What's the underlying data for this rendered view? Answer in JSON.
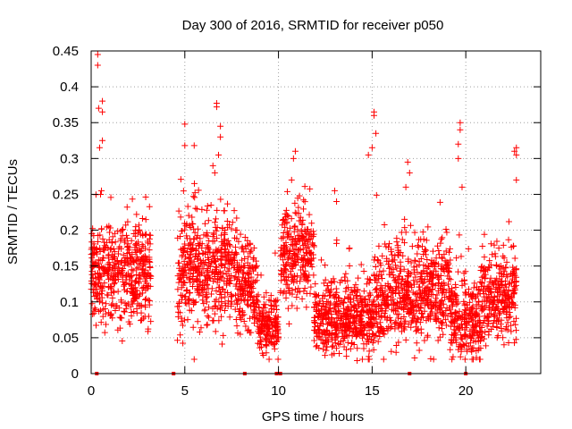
{
  "chart_data": {
    "type": "scatter",
    "title": "Day 300 of 2016, SRMTID for receiver p050",
    "xlabel": "GPS time / hours",
    "ylabel": "SRMTID / TECUs",
    "xlim": [
      0,
      24
    ],
    "ylim": [
      0,
      0.45
    ],
    "x_ticks": [
      0,
      5,
      10,
      15,
      20
    ],
    "y_ticks": [
      0,
      0.05,
      0.1,
      0.15,
      0.2,
      0.25,
      0.3,
      0.35,
      0.4,
      0.45
    ],
    "grid": true,
    "marker": "+",
    "color": "#ff0000",
    "segments": [
      {
        "x0": 0.0,
        "x1": 3.2,
        "mean": 0.14,
        "spread": 0.045
      },
      {
        "x0": 4.6,
        "x1": 7.8,
        "mean": 0.145,
        "spread": 0.05
      },
      {
        "x0": 7.8,
        "x1": 8.9,
        "mean": 0.12,
        "spread": 0.04
      },
      {
        "x0": 8.9,
        "x1": 10.0,
        "mean": 0.065,
        "spread": 0.025
      },
      {
        "x0": 10.1,
        "x1": 11.9,
        "mean": 0.165,
        "spread": 0.045
      },
      {
        "x0": 11.9,
        "x1": 15.1,
        "mean": 0.075,
        "spread": 0.035
      },
      {
        "x0": 15.1,
        "x1": 19.2,
        "mean": 0.11,
        "spread": 0.045
      },
      {
        "x0": 19.2,
        "x1": 20.8,
        "mean": 0.075,
        "spread": 0.035
      },
      {
        "x0": 20.8,
        "x1": 22.7,
        "mean": 0.11,
        "spread": 0.045
      }
    ],
    "outliers": [
      [
        0.35,
        0.445
      ],
      [
        0.35,
        0.43
      ],
      [
        0.4,
        0.37
      ],
      [
        0.6,
        0.38
      ],
      [
        0.6,
        0.365
      ],
      [
        0.45,
        0.315
      ],
      [
        0.6,
        0.325
      ],
      [
        0.55,
        0.255
      ],
      [
        0.5,
        0.25
      ],
      [
        5.0,
        0.348
      ],
      [
        5.5,
        0.318
      ],
      [
        5.0,
        0.318
      ],
      [
        6.7,
        0.377
      ],
      [
        6.7,
        0.372
      ],
      [
        6.9,
        0.345
      ],
      [
        6.9,
        0.33
      ],
      [
        6.8,
        0.305
      ],
      [
        6.5,
        0.29
      ],
      [
        6.6,
        0.28
      ],
      [
        10.9,
        0.31
      ],
      [
        10.8,
        0.3
      ],
      [
        10.7,
        0.27
      ],
      [
        13.0,
        0.255
      ],
      [
        13.1,
        0.24
      ],
      [
        15.1,
        0.365
      ],
      [
        15.1,
        0.36
      ],
      [
        15.2,
        0.335
      ],
      [
        15.0,
        0.315
      ],
      [
        14.8,
        0.305
      ],
      [
        16.9,
        0.295
      ],
      [
        17.0,
        0.28
      ],
      [
        16.8,
        0.26
      ],
      [
        19.7,
        0.35
      ],
      [
        19.7,
        0.34
      ],
      [
        19.6,
        0.32
      ],
      [
        19.6,
        0.3
      ],
      [
        19.8,
        0.26
      ],
      [
        22.7,
        0.315
      ],
      [
        22.6,
        0.31
      ],
      [
        22.7,
        0.305
      ],
      [
        22.7,
        0.27
      ],
      [
        5.5,
        0.02
      ],
      [
        14.2,
        0.018
      ],
      [
        9.5,
        0.02
      ],
      [
        6.4,
        0.235
      ]
    ],
    "gap_markers": [
      0.3,
      4.4,
      8.2,
      9.9,
      10.1,
      17.0,
      20.0
    ]
  }
}
